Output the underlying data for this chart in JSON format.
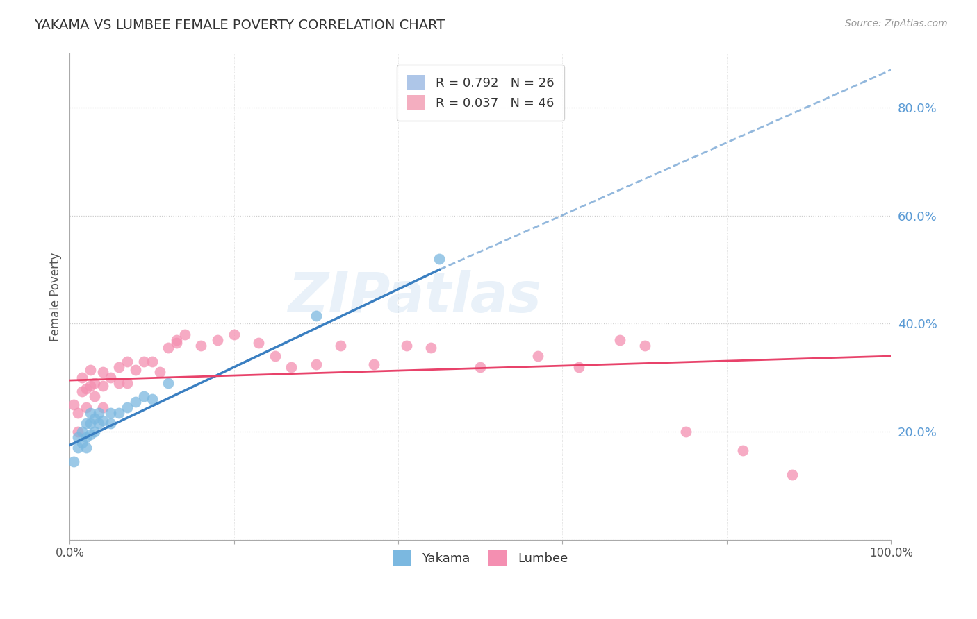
{
  "title": "YAKAMA VS LUMBEE FEMALE POVERTY CORRELATION CHART",
  "source": "Source: ZipAtlas.com",
  "ylabel": "Female Poverty",
  "yticks": [
    0.0,
    0.2,
    0.4,
    0.6,
    0.8
  ],
  "ytick_labels": [
    "",
    "20.0%",
    "40.0%",
    "60.0%",
    "80.0%"
  ],
  "legend_entries": [
    {
      "label": "R = 0.792   N = 26",
      "color": "#aec6e8"
    },
    {
      "label": "R = 0.037   N = 46",
      "color": "#f4aec0"
    }
  ],
  "legend_bottom": [
    "Yakama",
    "Lumbee"
  ],
  "yakama_color": "#7bb8e0",
  "lumbee_color": "#f48fb1",
  "trendline_yakama_color": "#3a7fc1",
  "trendline_lumbee_color": "#e8426a",
  "background_color": "#ffffff",
  "watermark": "ZIPatlas",
  "yakama_x": [
    0.005,
    0.01,
    0.01,
    0.015,
    0.015,
    0.02,
    0.02,
    0.02,
    0.025,
    0.025,
    0.025,
    0.03,
    0.03,
    0.035,
    0.035,
    0.04,
    0.05,
    0.05,
    0.06,
    0.07,
    0.08,
    0.09,
    0.1,
    0.12,
    0.3,
    0.45
  ],
  "yakama_y": [
    0.145,
    0.17,
    0.19,
    0.18,
    0.2,
    0.17,
    0.19,
    0.215,
    0.195,
    0.215,
    0.235,
    0.2,
    0.225,
    0.215,
    0.235,
    0.22,
    0.215,
    0.235,
    0.235,
    0.245,
    0.255,
    0.265,
    0.26,
    0.29,
    0.415,
    0.52
  ],
  "lumbee_x": [
    0.005,
    0.01,
    0.01,
    0.015,
    0.015,
    0.02,
    0.02,
    0.025,
    0.025,
    0.03,
    0.03,
    0.04,
    0.04,
    0.04,
    0.05,
    0.06,
    0.06,
    0.07,
    0.07,
    0.08,
    0.09,
    0.1,
    0.11,
    0.12,
    0.13,
    0.13,
    0.14,
    0.16,
    0.18,
    0.2,
    0.23,
    0.25,
    0.27,
    0.3,
    0.33,
    0.37,
    0.41,
    0.44,
    0.5,
    0.57,
    0.62,
    0.67,
    0.7,
    0.75,
    0.82,
    0.88
  ],
  "lumbee_y": [
    0.25,
    0.2,
    0.235,
    0.275,
    0.3,
    0.245,
    0.28,
    0.285,
    0.315,
    0.29,
    0.265,
    0.245,
    0.285,
    0.31,
    0.3,
    0.29,
    0.32,
    0.29,
    0.33,
    0.315,
    0.33,
    0.33,
    0.31,
    0.355,
    0.365,
    0.37,
    0.38,
    0.36,
    0.37,
    0.38,
    0.365,
    0.34,
    0.32,
    0.325,
    0.36,
    0.325,
    0.36,
    0.355,
    0.32,
    0.34,
    0.32,
    0.37,
    0.36,
    0.2,
    0.165,
    0.12
  ],
  "xlim": [
    0.0,
    1.0
  ],
  "ylim": [
    0.0,
    0.9
  ],
  "trendline_yakama_x0": 0.0,
  "trendline_yakama_y0": 0.175,
  "trendline_yakama_x1": 0.45,
  "trendline_yakama_y1": 0.5,
  "trendline_yakama_dash_x1": 1.0,
  "trendline_yakama_dash_y1": 0.87,
  "trendline_lumbee_x0": 0.0,
  "trendline_lumbee_y0": 0.295,
  "trendline_lumbee_x1": 1.0,
  "trendline_lumbee_y1": 0.34
}
